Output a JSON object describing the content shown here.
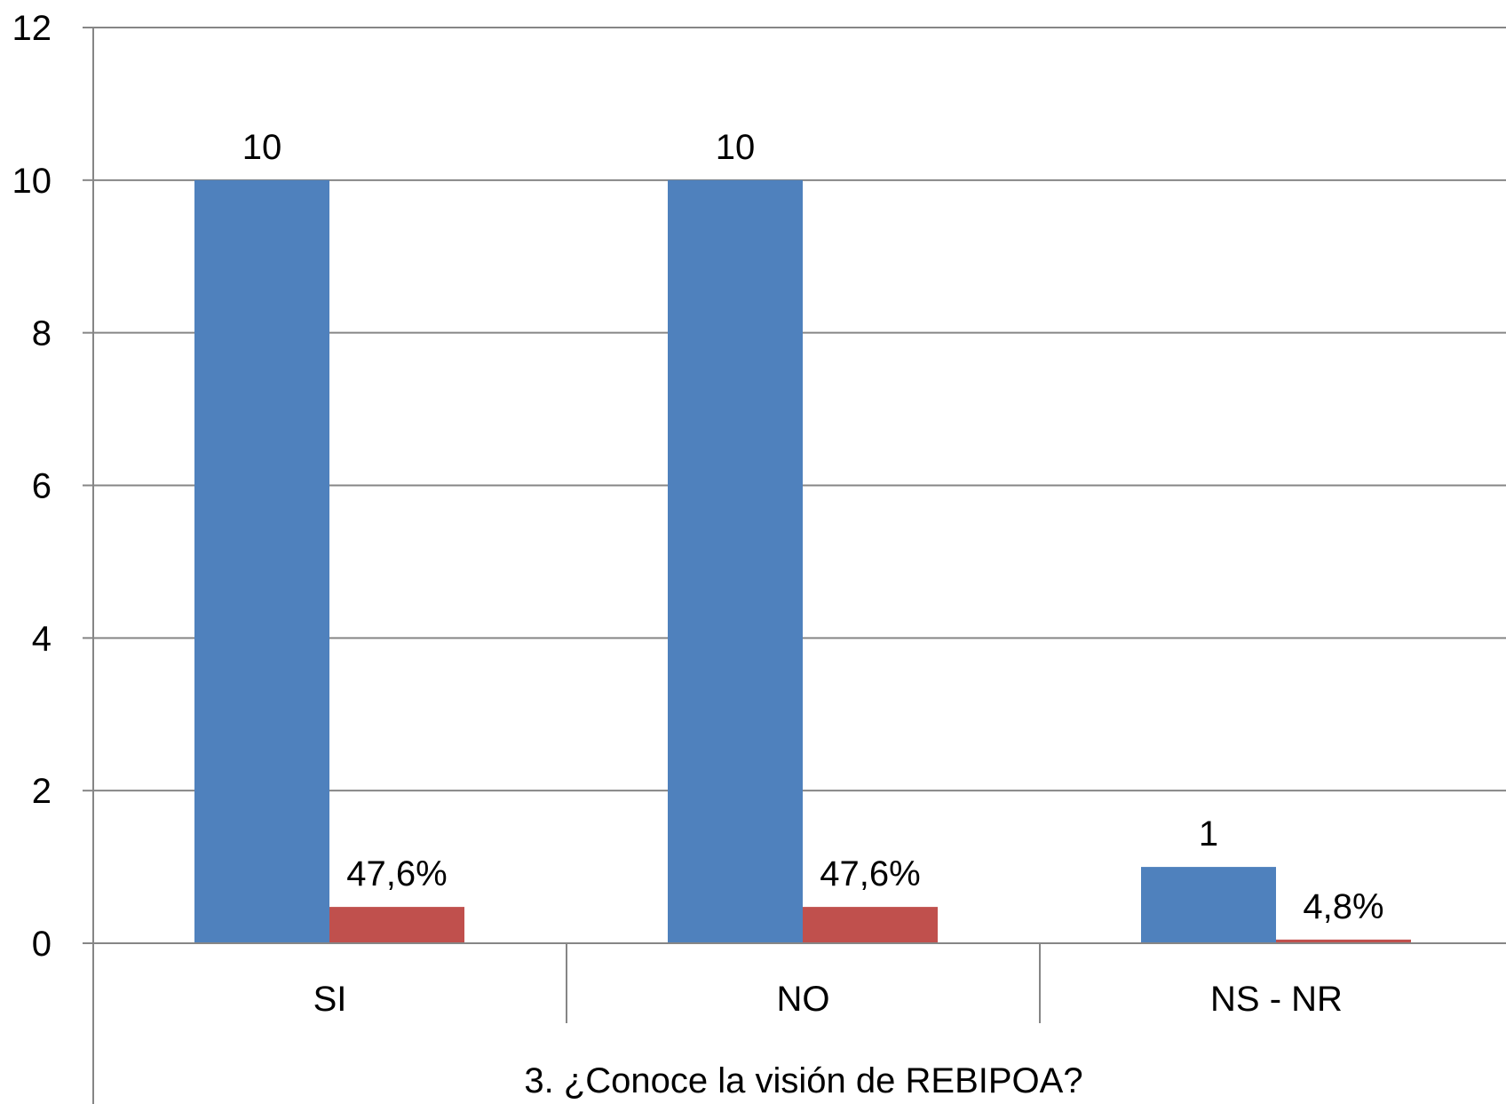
{
  "chart_data": {
    "type": "bar",
    "title": "",
    "xlabel": "3. ¿Conoce la visión de REBIPOA?",
    "ylabel": "",
    "categories": [
      "SI",
      "NO",
      "NS - NR"
    ],
    "series": [
      {
        "values": [
          10,
          10,
          1
        ],
        "labels": [
          "10",
          "10",
          "1"
        ],
        "color": "#4f81bd"
      },
      {
        "values": [
          0.476,
          0.476,
          0.048
        ],
        "labels": [
          "47,6%",
          "47,6%",
          "4,8%"
        ],
        "color": "#c0504d"
      }
    ],
    "ylim": [
      0,
      12
    ],
    "yticks": [
      "0",
      "2",
      "4",
      "6",
      "8",
      "10",
      "12"
    ],
    "grid": true,
    "legend": "none"
  }
}
